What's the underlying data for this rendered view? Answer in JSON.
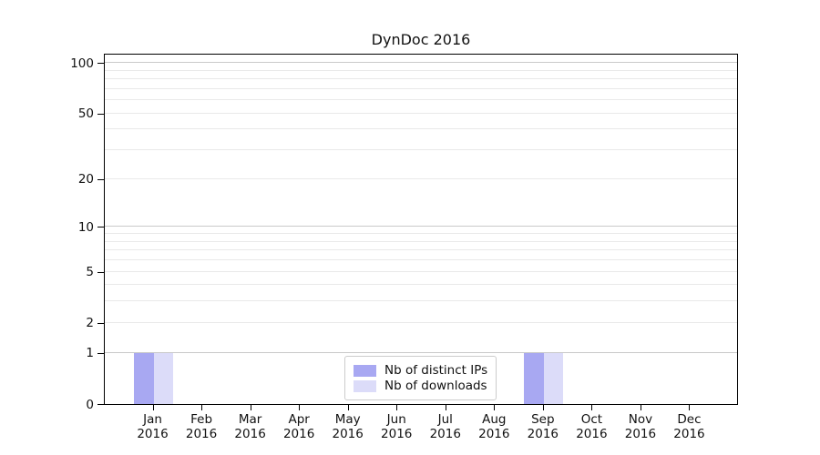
{
  "title": "DynDoc 2016",
  "colors": {
    "distinct_ips": "#a8a8f2",
    "downloads": "#dcdcf9",
    "grid_decade": "#c9c9c9",
    "grid_light": "#e9e9e9",
    "spine": "#000000"
  },
  "chart_data": {
    "type": "bar",
    "title": "DynDoc 2016",
    "categories": [
      "Jan 2016",
      "Feb 2016",
      "Mar 2016",
      "Apr 2016",
      "May 2016",
      "Jun 2016",
      "Jul 2016",
      "Aug 2016",
      "Sep 2016",
      "Oct 2016",
      "Nov 2016",
      "Dec 2016"
    ],
    "series": [
      {
        "name": "Nb of distinct IPs",
        "color": "#a8a8f2",
        "values": [
          1,
          0,
          0,
          0,
          0,
          0,
          0,
          0,
          1,
          0,
          0,
          0
        ]
      },
      {
        "name": "Nb of downloads",
        "color": "#dcdcf9",
        "values": [
          1,
          0,
          0,
          0,
          0,
          0,
          0,
          0,
          1,
          0,
          0,
          0
        ]
      }
    ],
    "xlabel": "",
    "ylabel": "",
    "y_axis": {
      "scale": "log(1+x)",
      "major_ticks": [
        0,
        1,
        2,
        5,
        10,
        20,
        50,
        100
      ],
      "minor_ticks": [
        3,
        4,
        6,
        7,
        8,
        9,
        30,
        40,
        60,
        70,
        80,
        90
      ],
      "decade_lines": [
        1,
        10,
        100
      ],
      "ylim": [
        0,
        115
      ]
    },
    "grid": "on",
    "legend": {
      "position": "lower center",
      "entries": [
        "Nb of distinct IPs",
        "Nb of downloads"
      ]
    }
  }
}
